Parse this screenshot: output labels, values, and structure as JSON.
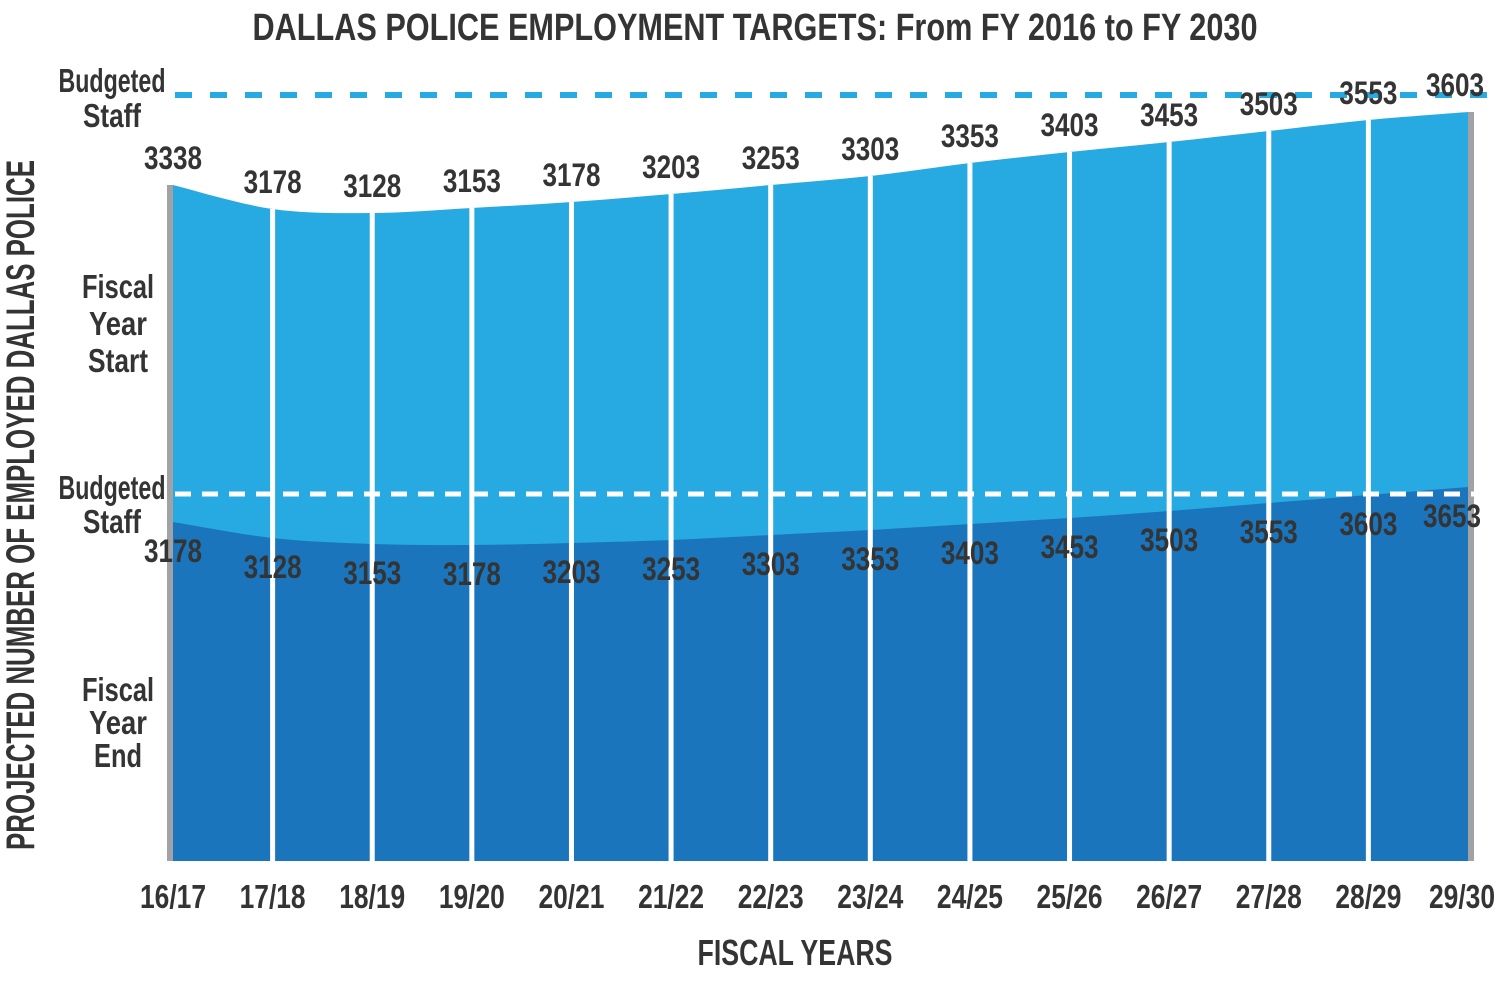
{
  "title": "DALLAS POLICE EMPLOYMENT TARGETS: From FY 2016 to FY 2030",
  "y_axis_title": "PROJECTED NUMBER OF EMPLOYED DALLAS POLICE",
  "x_axis_title": "FISCAL YEARS",
  "annotations": {
    "budgeted_staff_top": {
      "line1": "Budgeted",
      "line2": "Staff"
    },
    "fiscal_year_start": {
      "line1": "Fiscal",
      "line2": "Year",
      "line3": "Start"
    },
    "budgeted_staff_mid": {
      "line1": "Budgeted",
      "line2": "Staff"
    },
    "fiscal_year_end": {
      "line1": "Fiscal",
      "line2": "Year",
      "line3": "End"
    }
  },
  "colors": {
    "start_area": "#27AAE1",
    "end_area": "#1B75BC",
    "budget_line_start": "#27AAE1",
    "budget_line_end": "#FFFFFF",
    "text": "#343434",
    "edge_line": "#A0A2A5",
    "gridline": "#FFFFFF",
    "background": "#FFFFFF"
  },
  "chart_data": {
    "type": "area",
    "title": "DALLAS POLICE EMPLOYMENT TARGETS: From FY 2016 to FY 2030",
    "xlabel": "FISCAL YEARS",
    "ylabel": "PROJECTED NUMBER OF EMPLOYED DALLAS POLICE",
    "categories": [
      "16/17",
      "17/18",
      "18/19",
      "19/20",
      "20/21",
      "21/22",
      "22/23",
      "23/24",
      "24/25",
      "25/26",
      "26/27",
      "27/28",
      "28/29",
      "29/30"
    ],
    "series": [
      {
        "name": "Fiscal Year Start",
        "color": "#27AAE1",
        "values": [
          3338,
          3178,
          3128,
          3153,
          3178,
          3203,
          3253,
          3303,
          3353,
          3403,
          3453,
          3503,
          3553,
          3603
        ]
      },
      {
        "name": "Fiscal Year End",
        "color": "#1B75BC",
        "values": [
          3178,
          3128,
          3153,
          3178,
          3203,
          3253,
          3303,
          3353,
          3403,
          3453,
          3503,
          3553,
          3603,
          3653
        ]
      }
    ],
    "reference_lines": [
      {
        "name": "Budgeted Staff (Fiscal Year Start)",
        "style": "dashed",
        "color": "#27AAE1"
      },
      {
        "name": "Budgeted Staff (Fiscal Year End)",
        "style": "dashed",
        "color": "#FFFFFF"
      }
    ],
    "grid": true,
    "legend_position": "left-margin-annotations",
    "value_labels": "shown at every data point"
  }
}
